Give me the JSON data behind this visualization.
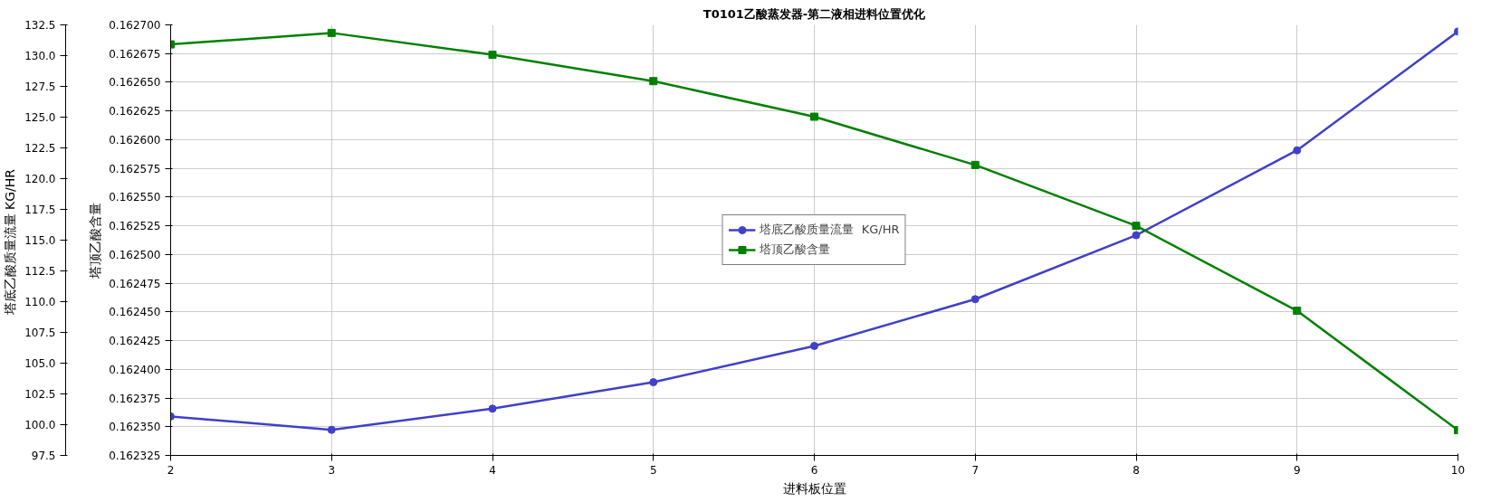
{
  "chart_data": {
    "type": "line",
    "title": "T0101乙酸蒸发器-第二液相进料位置优化",
    "xlabel": "进料板位置",
    "ylabel": "塔顶乙酸含量",
    "y2label": "塔底乙酸质量流量  KG/HR",
    "x": [
      2,
      3,
      4,
      5,
      6,
      7,
      8,
      9,
      10
    ],
    "series": [
      {
        "name": "塔底乙酸质量流量  KG/HR",
        "color": "#4040c8",
        "marker": "circle",
        "axis": "y2",
        "values": [
          100.67,
          99.58,
          101.3,
          103.45,
          106.4,
          110.2,
          115.4,
          122.3,
          131.96
        ]
      },
      {
        "name": "塔顶乙酸含量",
        "color": "#008000",
        "marker": "square",
        "axis": "y",
        "values": [
          0.162683,
          0.162693,
          0.162674,
          0.162651,
          0.16262,
          0.162578,
          0.162525,
          0.162451,
          0.162347
        ]
      }
    ],
    "xlim": [
      2,
      10
    ],
    "xticks": [
      2,
      3,
      4,
      5,
      6,
      7,
      8,
      9,
      10
    ],
    "y2lim": [
      97.5,
      132.5
    ],
    "y2ticks": [
      97.5,
      {
        "value": 100,
        "label": "100.0"
      },
      102.5,
      {
        "value": 105,
        "label": "105.0"
      },
      107.5,
      {
        "value": 110,
        "label": "110.0"
      },
      112.5,
      {
        "value": 115,
        "label": "115.0"
      },
      117.5,
      {
        "value": 120,
        "label": "120.0"
      },
      122.5,
      {
        "value": 125,
        "label": "125.0"
      },
      127.5,
      {
        "value": 130,
        "label": "130.0"
      },
      132.5
    ],
    "ylim": [
      0.162325,
      0.1627
    ],
    "yticks": [
      0.162325,
      {
        "value": 0.16235,
        "label": "0.162350"
      },
      0.162375,
      {
        "value": 0.1624,
        "label": "0.162400"
      },
      0.162425,
      {
        "value": 0.16245,
        "label": "0.162450"
      },
      0.162475,
      {
        "value": 0.1625,
        "label": "0.162500"
      },
      0.162525,
      {
        "value": 0.16255,
        "label": "0.162550"
      },
      0.162575,
      {
        "value": 0.1626,
        "label": "0.162600"
      },
      0.162625,
      {
        "value": 0.16265,
        "label": "0.162650"
      },
      0.162675,
      {
        "value": 0.1627,
        "label": "0.162700"
      }
    ],
    "grid": true,
    "legend": "center",
    "line_style": "solid"
  }
}
